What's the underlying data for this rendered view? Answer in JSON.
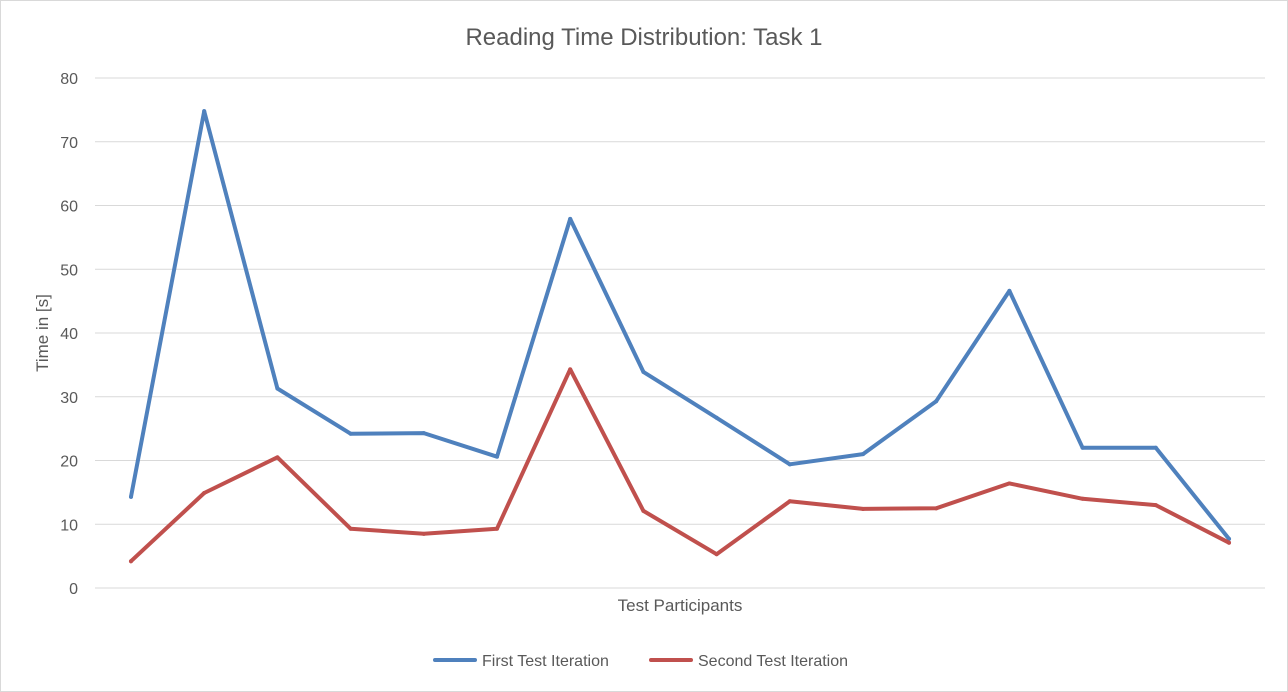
{
  "chart_data": {
    "type": "line",
    "title": "Reading Time Distribution: Task 1",
    "xlabel": "Test Participants",
    "ylabel": "Time in [s]",
    "ylim": [
      0,
      80
    ],
    "yticks": [
      0,
      10,
      20,
      30,
      40,
      50,
      60,
      70,
      80
    ],
    "grid": true,
    "legend_position": "bottom",
    "x": [
      1,
      2,
      3,
      4,
      5,
      6,
      7,
      8,
      9,
      10,
      11,
      12,
      13,
      14,
      15,
      16
    ],
    "series": [
      {
        "name": "First Test Iteration",
        "color": "#4f81bd",
        "values": [
          14.3,
          74.8,
          31.3,
          24.2,
          24.3,
          20.6,
          57.9,
          33.9,
          26.7,
          19.4,
          21.0,
          29.3,
          46.6,
          22.0,
          22.0,
          7.7
        ]
      },
      {
        "name": "Second Test Iteration",
        "color": "#c0504d",
        "values": [
          4.2,
          14.9,
          20.5,
          9.3,
          8.5,
          9.3,
          34.3,
          12.1,
          5.3,
          13.6,
          12.4,
          12.5,
          16.4,
          14.0,
          13.0,
          7.1
        ]
      }
    ]
  }
}
